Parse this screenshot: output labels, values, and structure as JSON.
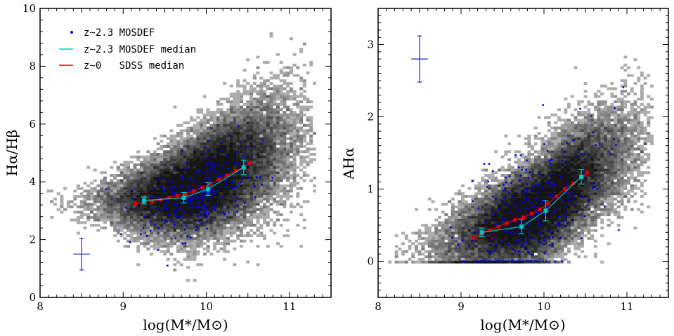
{
  "chart_data": [
    {
      "type": "scatter",
      "panel": "left",
      "xlabel": "log(M*/M⊙)",
      "ylabel": "Hα/Hβ",
      "xlim": [
        8,
        11.5
      ],
      "ylim": [
        0,
        10
      ],
      "xticks": [
        "8",
        "9",
        "10",
        "11"
      ],
      "yticks": [
        "0",
        "2",
        "4",
        "6",
        "8",
        "10"
      ],
      "legend_position": "top-left",
      "legend": [
        {
          "label": "z~2.3 MOSDEF",
          "color": "#0000dd",
          "marker": "point"
        },
        {
          "label": "z~2.3 MOSDEF median",
          "color": "#00c8c8",
          "marker": "line"
        },
        {
          "label": "z~0   SDSS median",
          "color": "#e00000",
          "marker": "line"
        }
      ],
      "series": [
        {
          "name": "z~0   SDSS median",
          "color": "#e00000",
          "x": [
            9.15,
            9.25,
            9.35,
            9.45,
            9.55,
            9.65,
            9.75,
            9.85,
            9.95,
            10.05,
            10.15,
            10.25,
            10.35,
            10.45,
            10.52
          ],
          "y": [
            3.25,
            3.28,
            3.32,
            3.38,
            3.45,
            3.52,
            3.58,
            3.68,
            3.8,
            3.92,
            4.08,
            4.22,
            4.38,
            4.52,
            4.65
          ]
        },
        {
          "name": "z~2.3 MOSDEF median",
          "color": "#00c8c8",
          "x": [
            9.25,
            9.73,
            10.02,
            10.45
          ],
          "y": [
            3.35,
            3.45,
            3.75,
            4.5
          ],
          "yerr": [
            0.12,
            0.18,
            0.22,
            0.25
          ]
        }
      ],
      "typical_error": {
        "x": 8.5,
        "y": 1.5,
        "xerr": 0.08,
        "yerr": 0.55
      },
      "background": "grey density of SDSS z~0 galaxies",
      "grid": false
    },
    {
      "type": "scatter",
      "panel": "right",
      "xlabel": "log(M*/M⊙)",
      "ylabel": "AHα",
      "xlim": [
        8,
        11.5
      ],
      "ylim": [
        -0.5,
        3.5
      ],
      "xticks": [
        "8",
        "9",
        "10",
        "11"
      ],
      "yticks": [
        "0",
        "1",
        "2",
        "3"
      ],
      "series": [
        {
          "name": "z~0   SDSS median",
          "color": "#e00000",
          "x": [
            9.15,
            9.25,
            9.35,
            9.45,
            9.55,
            9.65,
            9.75,
            9.85,
            9.95,
            10.05,
            10.15,
            10.25,
            10.35,
            10.45,
            10.52
          ],
          "y": [
            0.33,
            0.38,
            0.43,
            0.48,
            0.53,
            0.57,
            0.61,
            0.66,
            0.72,
            0.8,
            0.9,
            1.0,
            1.08,
            1.16,
            1.23
          ]
        },
        {
          "name": "z~2.3 MOSDEF median",
          "color": "#00c8c8",
          "x": [
            9.25,
            9.73,
            10.02,
            10.45
          ],
          "y": [
            0.4,
            0.48,
            0.7,
            1.17
          ],
          "yerr": [
            0.06,
            0.1,
            0.14,
            0.1
          ]
        }
      ],
      "typical_error": {
        "x": 8.5,
        "y": 2.8,
        "xerr": 0.08,
        "yerr": 0.32
      },
      "background": "grey density of SDSS z~0 galaxies",
      "grid": false
    }
  ]
}
